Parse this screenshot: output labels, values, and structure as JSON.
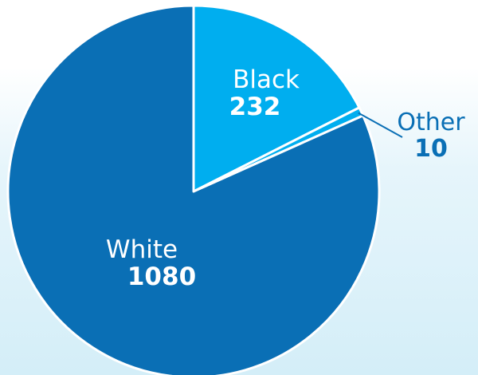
{
  "chart_data": {
    "type": "pie",
    "title": "",
    "slices": [
      {
        "label": "Black",
        "value": 232,
        "color": "#00aeef",
        "label_color": "#ffffff"
      },
      {
        "label": "Other",
        "value": 10,
        "color": "#00aeef",
        "label_color": "#0a6fb5"
      },
      {
        "label": "White",
        "value": 1080,
        "color": "#0a6fb5",
        "label_color": "#ffffff"
      }
    ],
    "background_colors": [
      "#ffffff",
      "#d4eef8"
    ]
  }
}
